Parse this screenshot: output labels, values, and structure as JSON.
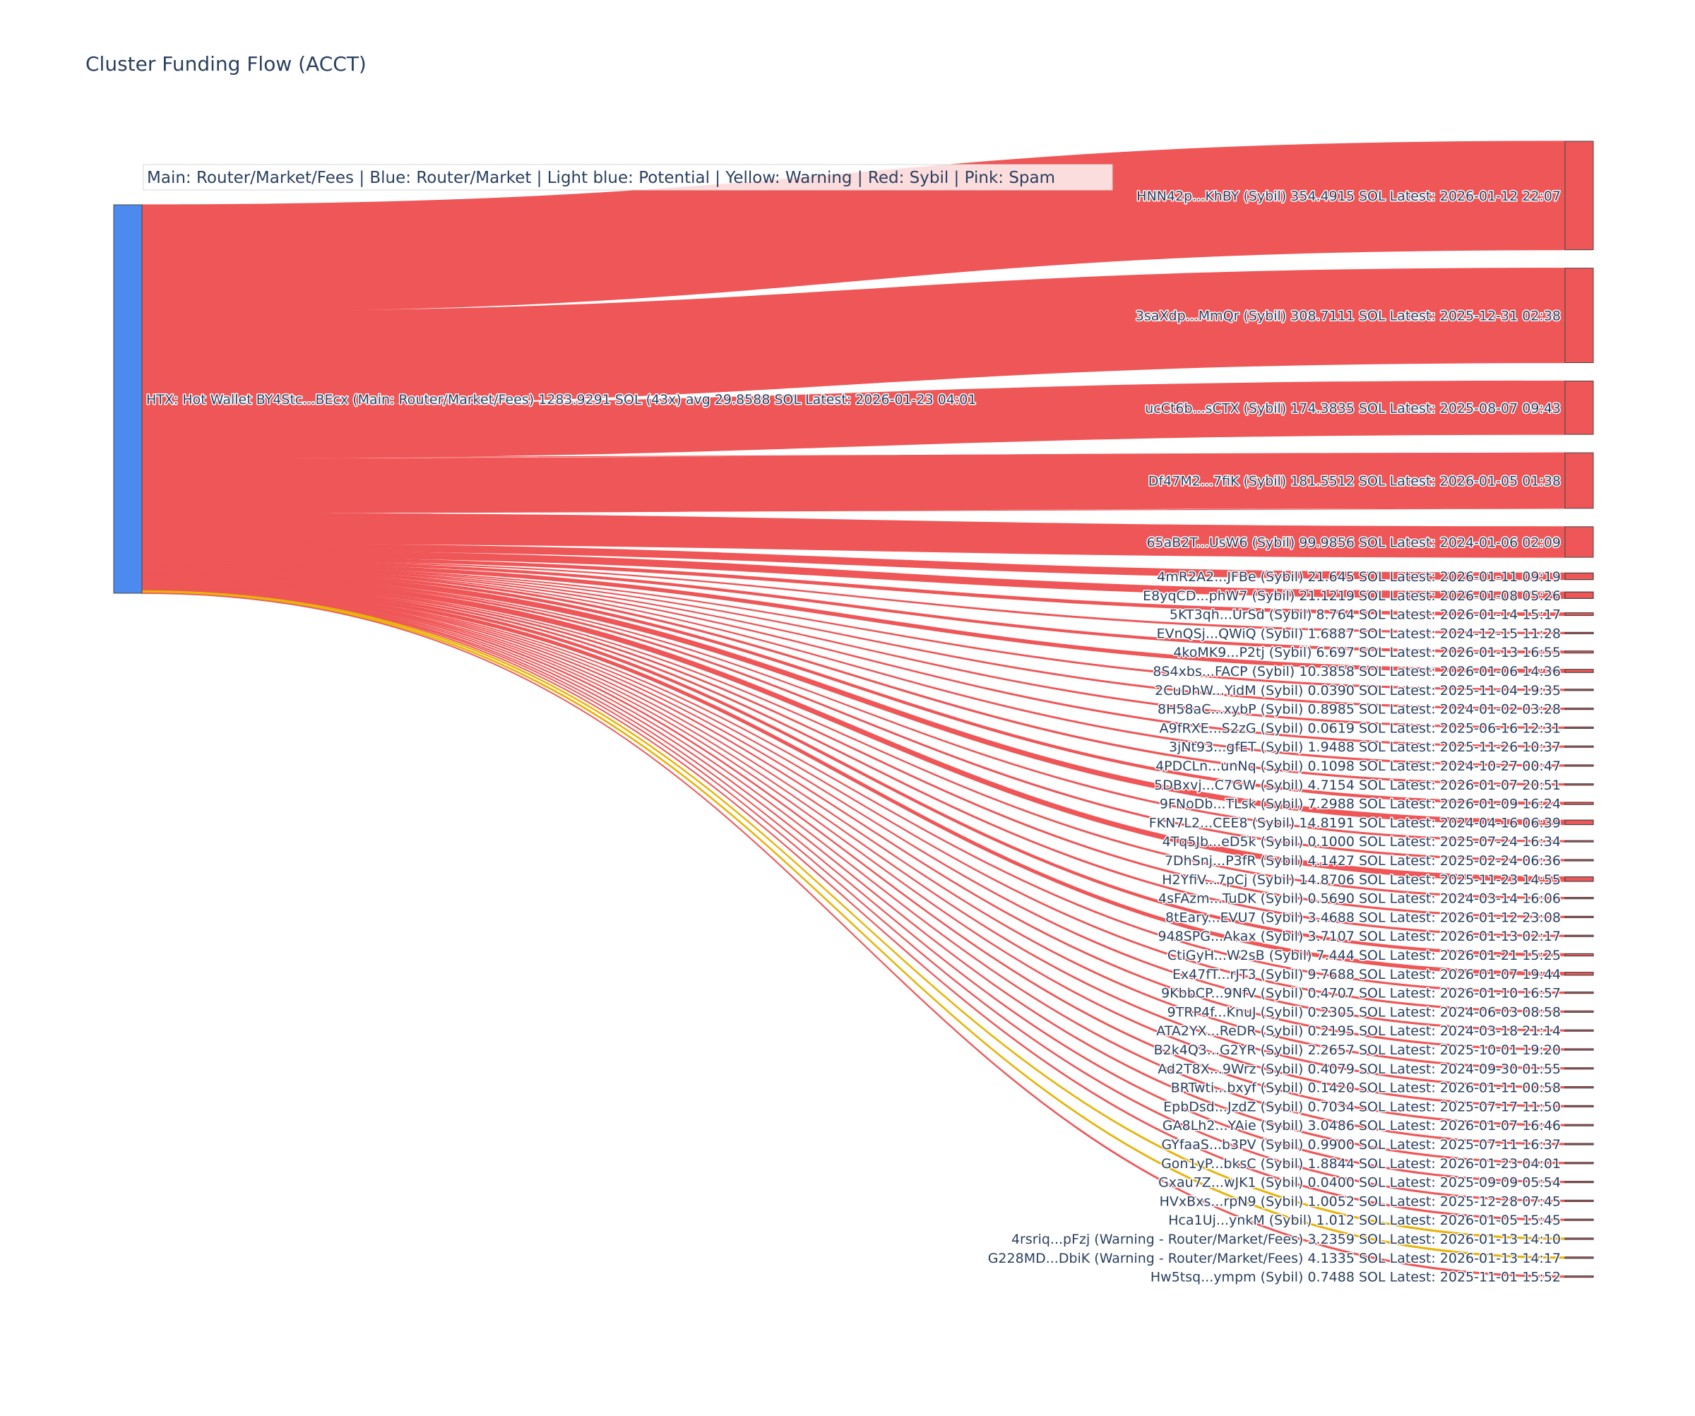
{
  "chart_data": {
    "type": "sankey",
    "title": "Cluster Funding Flow (ACCT)",
    "legend": "Main: Router/Market/Fees  |  Blue: Router/Market | Light blue: Potential | Yellow: Warning | Red: Sybil | Pink: Spam",
    "colors": {
      "source_node": "#4d8af0",
      "sybil": "#ef5657",
      "warning": "#e8b40c",
      "target_node": "#ef5657"
    },
    "source": {
      "label": "HTX: Hot Wallet BY4Stc...BEcx (Main: Router/Market/Fees) 1283.9291 SOL (43x) avg 29.8588 SOL Latest: 2026-01-23 04:01",
      "value": 1283.9291
    },
    "targets": [
      {
        "label": "HNN42p...KhBY (Sybil) 354.4915 SOL Latest: 2026-01-12 22:07",
        "value": 354.4915,
        "category": "sybil"
      },
      {
        "label": "3saXdp...MmQr (Sybil) 308.7111 SOL Latest: 2025-12-31 02:38",
        "value": 308.7111,
        "category": "sybil"
      },
      {
        "label": "ucCt6b...sCTX (Sybil) 174.3835 SOL Latest: 2025-08-07 09:43",
        "value": 174.3835,
        "category": "sybil"
      },
      {
        "label": "Df47M2...7fiK (Sybil) 181.5512 SOL Latest: 2026-01-05 01:38",
        "value": 181.5512,
        "category": "sybil"
      },
      {
        "label": "65aB2T...UsW6 (Sybil) 99.9856 SOL Latest: 2024-01-06 02:09",
        "value": 99.9856,
        "category": "sybil"
      },
      {
        "label": "4mR2A2...JFBe (Sybil) 21.645 SOL Latest: 2026-01-11 09:19",
        "value": 21.645,
        "category": "sybil"
      },
      {
        "label": "E8yqCD...phW7 (Sybil) 21.1219 SOL Latest: 2026-01-08 05:26",
        "value": 21.1219,
        "category": "sybil"
      },
      {
        "label": "5KT3qh...UrSd (Sybil) 8.764 SOL Latest: 2026-01-14 15:17",
        "value": 8.764,
        "category": "sybil"
      },
      {
        "label": "EVnQSj...QWiQ (Sybil) 1.6887 SOL Latest: 2024-12-15 11:28",
        "value": 1.6887,
        "category": "sybil"
      },
      {
        "label": "4koMK9...P2tj (Sybil) 6.697 SOL Latest: 2026-01-13 16:55",
        "value": 6.697,
        "category": "sybil"
      },
      {
        "label": "8S4xbs...FACP (Sybil) 10.3858 SOL Latest: 2026-01-06 14:36",
        "value": 10.3858,
        "category": "sybil"
      },
      {
        "label": "2CuDhW...YidM (Sybil) 0.0390 SOL Latest: 2025-11-04 19:35",
        "value": 0.039,
        "category": "sybil"
      },
      {
        "label": "8H58aC...xybP (Sybil) 0.8985 SOL Latest: 2024-01-02 03:28",
        "value": 0.8985,
        "category": "sybil"
      },
      {
        "label": "A9fRXE...S2zG (Sybil) 0.0619 SOL Latest: 2025-06-16 12:31",
        "value": 0.0619,
        "category": "sybil"
      },
      {
        "label": "3jNt93...gfET (Sybil) 1.9488 SOL Latest: 2025-11-26 10:37",
        "value": 1.9488,
        "category": "sybil"
      },
      {
        "label": "4PDCLn...unNq (Sybil) 0.1098 SOL Latest: 2024-10-27 00:47",
        "value": 0.1098,
        "category": "sybil"
      },
      {
        "label": "5DBxvj...C7GW (Sybil) 4.7154 SOL Latest: 2026-01-07 20:51",
        "value": 4.7154,
        "category": "sybil"
      },
      {
        "label": "9FNoDb...TLsk (Sybil) 7.2988 SOL Latest: 2026-01-09 16:24",
        "value": 7.2988,
        "category": "sybil"
      },
      {
        "label": "FKN7L2...CEE8 (Sybil) 14.8191 SOL Latest: 2024-04-16 06:39",
        "value": 14.8191,
        "category": "sybil"
      },
      {
        "label": "4Tq5Jb...eD5k (Sybil) 0.1000 SOL Latest: 2025-07-24 16:34",
        "value": 0.1,
        "category": "sybil"
      },
      {
        "label": "7DhSnj...P3fR (Sybil) 4.1427 SOL Latest: 2025-02-24 06:36",
        "value": 4.1427,
        "category": "sybil"
      },
      {
        "label": "H2YfiV...7pCj (Sybil) 14.8706 SOL Latest: 2025-11-23 14:55",
        "value": 14.8706,
        "category": "sybil"
      },
      {
        "label": "4sFAzm...TuDK (Sybil) 0.5690 SOL Latest: 2024-03-14 16:06",
        "value": 0.569,
        "category": "sybil"
      },
      {
        "label": "8tEary...EVU7 (Sybil) 3.4688 SOL Latest: 2026-01-12 23:08",
        "value": 3.4688,
        "category": "sybil"
      },
      {
        "label": "948SPG...Akax (Sybil) 3.7107 SOL Latest: 2026-01-13 02:17",
        "value": 3.7107,
        "category": "sybil"
      },
      {
        "label": "CtiGyH...W2sB (Sybil) 7.444 SOL Latest: 2026-01-21 15:25",
        "value": 7.444,
        "category": "sybil"
      },
      {
        "label": "Ex47fT...rJT3 (Sybil) 9.7688 SOL Latest: 2026-01-07 19:44",
        "value": 9.7688,
        "category": "sybil"
      },
      {
        "label": "9KbbCP...9NfV (Sybil) 0.4707 SOL Latest: 2026-01-10 16:57",
        "value": 0.4707,
        "category": "sybil"
      },
      {
        "label": "9TRP4f...KnuJ (Sybil) 0.2305 SOL Latest: 2024-06-03 08:58",
        "value": 0.2305,
        "category": "sybil"
      },
      {
        "label": "ATA2YX...ReDR (Sybil) 0.2195 SOL Latest: 2024-03-18 21:14",
        "value": 0.2195,
        "category": "sybil"
      },
      {
        "label": "B2k4Q3...G2YR (Sybil) 2.2657 SOL Latest: 2025-10-01 19:20",
        "value": 2.2657,
        "category": "sybil"
      },
      {
        "label": "Ad2T8X...9Wrz (Sybil) 0.4079 SOL Latest: 2024-09-30 01:55",
        "value": 0.4079,
        "category": "sybil"
      },
      {
        "label": "BRTwti...bxyf (Sybil) 0.1420 SOL Latest: 2026-01-11 00:58",
        "value": 0.142,
        "category": "sybil"
      },
      {
        "label": "EpbDsd...JzdZ (Sybil) 0.7034 SOL Latest: 2025-07-17 11:50",
        "value": 0.7034,
        "category": "sybil"
      },
      {
        "label": "GA8Lh2...YAie (Sybil) 3.0486 SOL Latest: 2026-01-07 16:46",
        "value": 3.0486,
        "category": "sybil"
      },
      {
        "label": "GYfaaS...b3PV (Sybil) 0.9900 SOL Latest: 2025-07-11 16:37",
        "value": 0.99,
        "category": "sybil"
      },
      {
        "label": "Gon1yP...bksC (Sybil) 1.8844 SOL Latest: 2026-01-23 04:01",
        "value": 1.8844,
        "category": "sybil"
      },
      {
        "label": "Gxau7Z...wJK1 (Sybil) 0.0400 SOL Latest: 2025-09-09 05:54",
        "value": 0.04,
        "category": "sybil"
      },
      {
        "label": "HVxBxs...rpN9 (Sybil) 1.0052 SOL Latest: 2025-12-28 07:45",
        "value": 1.0052,
        "category": "sybil"
      },
      {
        "label": "Hca1Uj...ynkM (Sybil) 1.012 SOL Latest: 2026-01-05 15:45",
        "value": 1.012,
        "category": "sybil"
      },
      {
        "label": "4rsriq...pFzj (Warning - Router/Market/Fees) 3.2359 SOL Latest: 2026-01-13 14:10",
        "value": 3.2359,
        "category": "warning"
      },
      {
        "label": "G228MD...DbiK (Warning - Router/Market/Fees) 4.1335 SOL Latest: 2026-01-13 14:17",
        "value": 4.1335,
        "category": "warning"
      },
      {
        "label": "Hw5tsq...ympm (Sybil) 0.7488 SOL Latest: 2025-11-01 15:52",
        "value": 0.7488,
        "category": "sybil"
      }
    ]
  }
}
